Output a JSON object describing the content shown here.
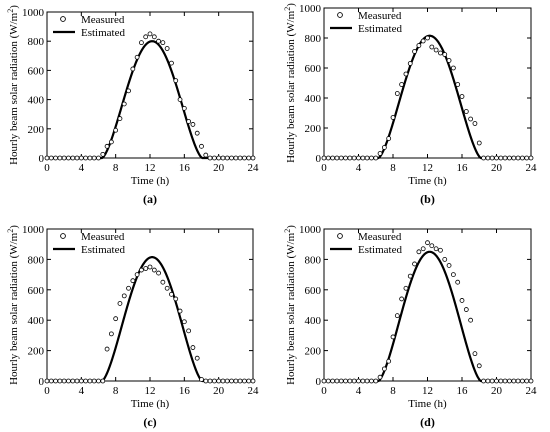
{
  "chart_data": [
    {
      "type": "scatter",
      "panel_label": "(a)",
      "xlabel": "Time (h)",
      "ylabel": "Hourly beam solar radiation (W/m",
      "ylabel_sup": "2",
      "ylabel_close": ")",
      "xlim": [
        0,
        24
      ],
      "ylim": [
        0,
        1000
      ],
      "xticks": [
        "0",
        "4",
        "8",
        "12",
        "16",
        "20",
        "24"
      ],
      "yticks": [
        "0",
        "200",
        "400",
        "600",
        "800",
        "1000"
      ],
      "legend": {
        "position": "top-left",
        "entries": [
          "Measured",
          "Estimated"
        ]
      },
      "series": [
        {
          "name": "Measured",
          "style": "open-circle",
          "x": [
            0,
            0.5,
            1,
            1.5,
            2,
            2.5,
            3,
            3.5,
            4,
            4.5,
            5,
            5.5,
            6,
            6.5,
            7,
            7.5,
            8,
            8.5,
            9,
            9.5,
            10,
            10.5,
            11,
            11.5,
            12,
            12.5,
            13,
            13.5,
            14,
            14.5,
            15,
            15.5,
            16,
            16.5,
            17,
            17.5,
            18,
            18.5,
            19,
            19.5,
            20,
            20.5,
            21,
            21.5,
            22,
            22.5,
            23,
            23.5,
            24
          ],
          "y": [
            0,
            0,
            0,
            0,
            0,
            0,
            0,
            0,
            0,
            0,
            0,
            0,
            0,
            25,
            80,
            110,
            190,
            270,
            370,
            460,
            610,
            690,
            790,
            830,
            850,
            830,
            800,
            790,
            750,
            650,
            530,
            400,
            340,
            250,
            230,
            170,
            80,
            20,
            0,
            0,
            0,
            0,
            0,
            0,
            0,
            0,
            0,
            0,
            0
          ]
        },
        {
          "name": "Estimated",
          "style": "line",
          "peak": 800,
          "sunrise": 6.4,
          "sunset": 18.1
        }
      ]
    },
    {
      "type": "scatter",
      "panel_label": "(b)",
      "xlabel": "Time (h)",
      "ylabel": "Hourly beam solar radiation (W/m",
      "ylabel_sup": "2",
      "ylabel_close": ")",
      "xlim": [
        0,
        24
      ],
      "ylim": [
        0,
        1000
      ],
      "xticks": [
        "0",
        "4",
        "8",
        "12",
        "16",
        "20",
        "24"
      ],
      "yticks": [
        "0",
        "200",
        "400",
        "600",
        "800",
        "1000"
      ],
      "legend": {
        "position": "top-left",
        "entries": [
          "Measured",
          "Estimated"
        ]
      },
      "series": [
        {
          "name": "Measured",
          "style": "open-circle",
          "x": [
            0,
            0.5,
            1,
            1.5,
            2,
            2.5,
            3,
            3.5,
            4,
            4.5,
            5,
            5.5,
            6,
            6.5,
            7,
            7.5,
            8,
            8.5,
            9,
            9.5,
            10,
            10.5,
            11,
            11.5,
            12,
            12.5,
            13,
            13.5,
            14,
            14.5,
            15,
            15.5,
            16,
            16.5,
            17,
            17.5,
            18,
            18.5,
            19,
            19.5,
            20,
            20.5,
            21,
            21.5,
            22,
            22.5,
            23,
            23.5,
            24
          ],
          "y": [
            0,
            0,
            0,
            0,
            0,
            0,
            0,
            0,
            0,
            0,
            0,
            0,
            0,
            30,
            70,
            130,
            270,
            430,
            490,
            560,
            630,
            710,
            750,
            780,
            800,
            740,
            720,
            700,
            690,
            650,
            600,
            490,
            410,
            310,
            260,
            230,
            100,
            0,
            0,
            0,
            0,
            0,
            0,
            0,
            0,
            0,
            0,
            0,
            0
          ]
        },
        {
          "name": "Estimated",
          "style": "line",
          "peak": 815,
          "sunrise": 6.3,
          "sunset": 18.2
        }
      ]
    },
    {
      "type": "scatter",
      "panel_label": "(c)",
      "xlabel": "Time (h)",
      "ylabel": "Hourly beam solar radiation (W/m",
      "ylabel_sup": "2",
      "ylabel_close": ")",
      "xlim": [
        0,
        24
      ],
      "ylim": [
        0,
        1000
      ],
      "xticks": [
        "0",
        "4",
        "8",
        "12",
        "16",
        "20",
        "24"
      ],
      "yticks": [
        "0",
        "200",
        "400",
        "600",
        "800",
        "1000"
      ],
      "legend": {
        "position": "top-left",
        "entries": [
          "Measured",
          "Estimated"
        ]
      },
      "series": [
        {
          "name": "Measured",
          "style": "open-circle",
          "x": [
            0,
            0.5,
            1,
            1.5,
            2,
            2.5,
            3,
            3.5,
            4,
            4.5,
            5,
            5.5,
            6,
            6.5,
            7,
            7.5,
            8,
            8.5,
            9,
            9.5,
            10,
            10.5,
            11,
            11.5,
            12,
            12.5,
            13,
            13.5,
            14,
            14.5,
            15,
            15.5,
            16,
            16.5,
            17,
            17.5,
            18,
            18.5,
            19,
            19.5,
            20,
            20.5,
            21,
            21.5,
            22,
            22.5,
            23,
            23.5,
            24
          ],
          "y": [
            0,
            0,
            0,
            0,
            0,
            0,
            0,
            0,
            0,
            0,
            0,
            0,
            0,
            0,
            210,
            310,
            410,
            510,
            560,
            610,
            660,
            700,
            730,
            740,
            750,
            730,
            710,
            650,
            610,
            570,
            540,
            460,
            390,
            330,
            220,
            150,
            10,
            0,
            0,
            0,
            0,
            0,
            0,
            0,
            0,
            0,
            0,
            0,
            0
          ]
        },
        {
          "name": "Estimated",
          "style": "line",
          "peak": 815,
          "sunrise": 6.4,
          "sunset": 18.1
        }
      ]
    },
    {
      "type": "scatter",
      "panel_label": "(d)",
      "xlabel": "Time (h)",
      "ylabel": "Hourly beam solar radiation (W/m",
      "ylabel_sup": "2",
      "ylabel_close": ")",
      "xlim": [
        0,
        24
      ],
      "ylim": [
        0,
        1000
      ],
      "xticks": [
        "0",
        "4",
        "8",
        "12",
        "16",
        "20",
        "24"
      ],
      "yticks": [
        "0",
        "200",
        "400",
        "600",
        "800",
        "1000"
      ],
      "legend": {
        "position": "top-left",
        "entries": [
          "Measured",
          "Estimated"
        ]
      },
      "series": [
        {
          "name": "Measured",
          "style": "open-circle",
          "x": [
            0,
            0.5,
            1,
            1.5,
            2,
            2.5,
            3,
            3.5,
            4,
            4.5,
            5,
            5.5,
            6,
            6.5,
            7,
            7.5,
            8,
            8.5,
            9,
            9.5,
            10,
            10.5,
            11,
            11.5,
            12,
            12.5,
            13,
            13.5,
            14,
            14.5,
            15,
            15.5,
            16,
            16.5,
            17,
            17.5,
            18,
            18.5,
            19,
            19.5,
            20,
            20.5,
            21,
            21.5,
            22,
            22.5,
            23,
            23.5,
            24
          ],
          "y": [
            0,
            0,
            0,
            0,
            0,
            0,
            0,
            0,
            0,
            0,
            0,
            0,
            0,
            25,
            80,
            130,
            290,
            430,
            540,
            610,
            690,
            770,
            850,
            870,
            910,
            890,
            870,
            860,
            800,
            760,
            700,
            650,
            530,
            470,
            400,
            180,
            100,
            0,
            0,
            0,
            0,
            0,
            0,
            0,
            0,
            0,
            0,
            0,
            0
          ]
        },
        {
          "name": "Estimated",
          "style": "line",
          "peak": 850,
          "sunrise": 6.3,
          "sunset": 18.2
        }
      ]
    }
  ]
}
